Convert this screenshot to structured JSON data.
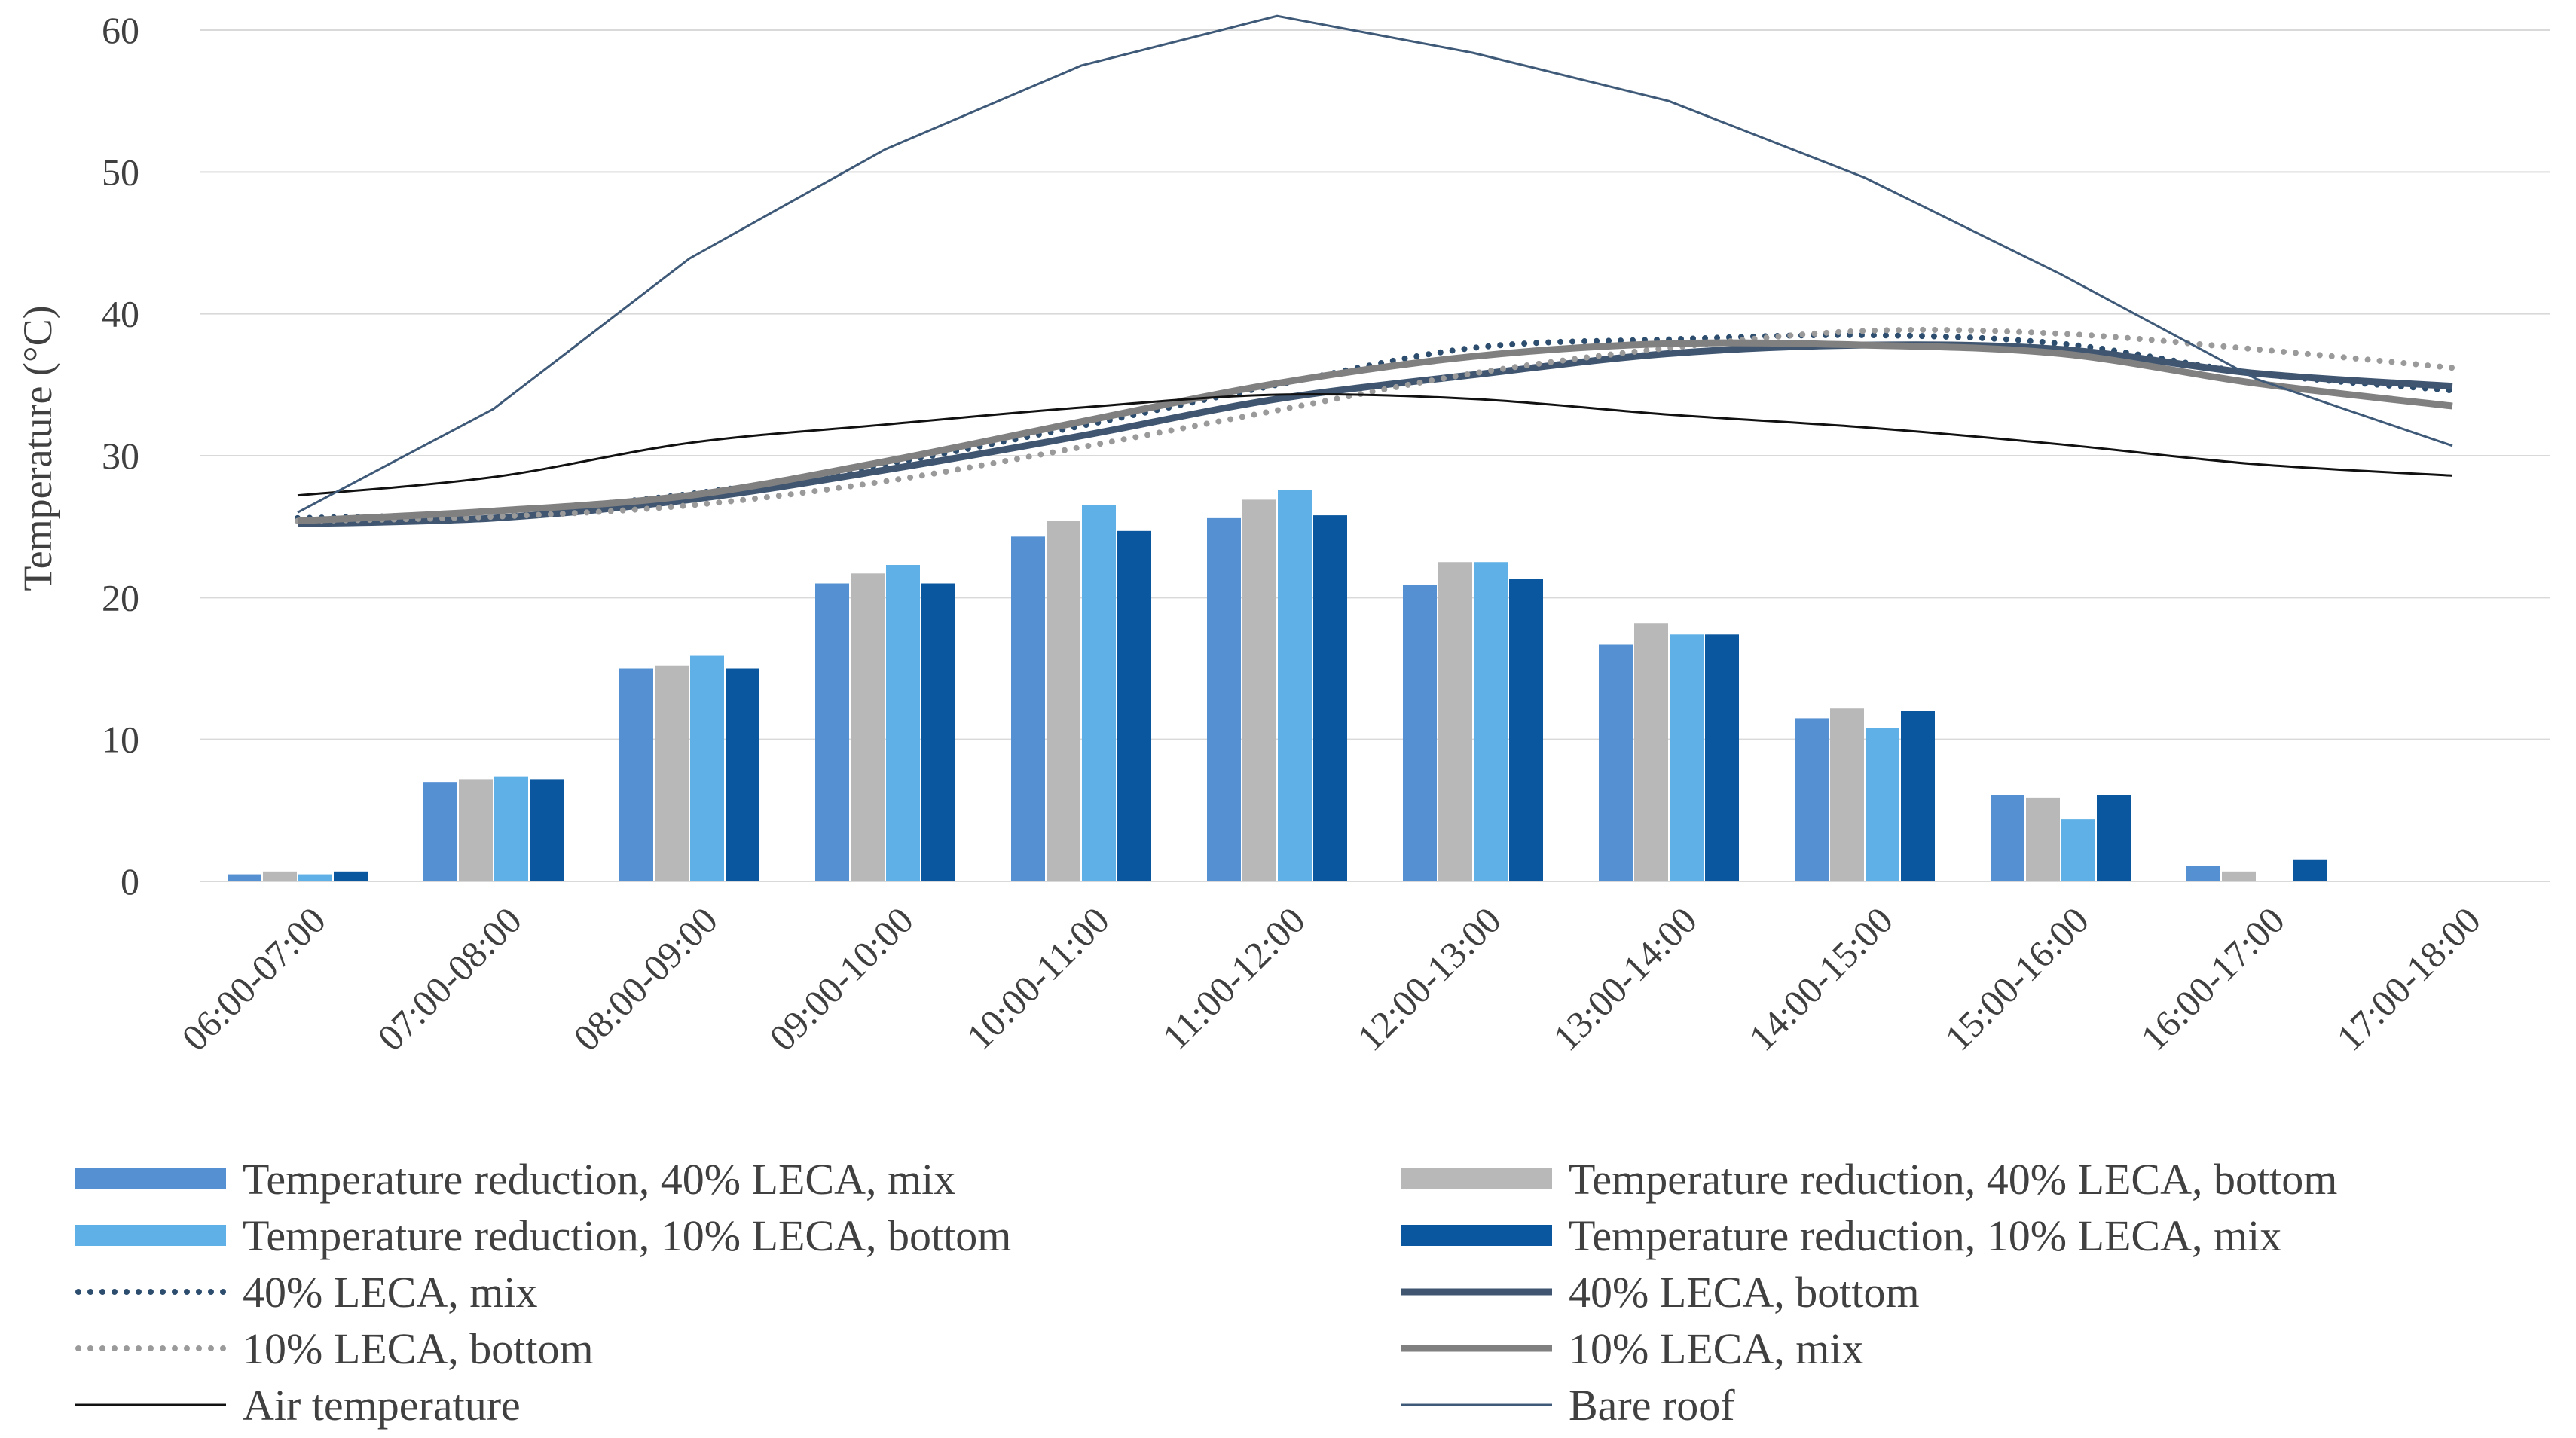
{
  "chart_data": {
    "type": "bar+line",
    "ylabel": "Temperature (°C)",
    "xlabel": "",
    "ylim": [
      0,
      60
    ],
    "yticks": [
      0,
      10,
      20,
      30,
      40,
      50,
      60
    ],
    "grid": true,
    "legend_position": "bottom",
    "categories": [
      "06:00-07:00",
      "07:00-08:00",
      "08:00-09:00",
      "09:00-10:00",
      "10:00-11:00",
      "11:00-12:00",
      "12:00-13:00",
      "13:00-14:00",
      "14:00-15:00",
      "15:00-16:00",
      "16:00-17:00",
      "17:00-18:00"
    ],
    "bar_series": [
      {
        "name": "Temperature reduction, 40% LECA, mix",
        "color": "#5590d2",
        "values": [
          0.5,
          7.0,
          15.0,
          21.0,
          24.3,
          25.6,
          20.9,
          16.7,
          11.5,
          6.1,
          1.1,
          0
        ]
      },
      {
        "name": "Temperature reduction, 40% LECA, bottom",
        "color": "#b8b8b8",
        "values": [
          0.7,
          7.2,
          15.2,
          21.7,
          25.4,
          26.9,
          22.5,
          18.2,
          12.2,
          5.9,
          0.7,
          0
        ]
      },
      {
        "name": "Temperature reduction, 10% LECA, bottom",
        "color": "#5fb0e6",
        "values": [
          0.5,
          7.4,
          15.9,
          22.3,
          26.5,
          27.6,
          22.5,
          17.4,
          10.8,
          4.4,
          0,
          0
        ]
      },
      {
        "name": "Temperature reduction, 10% LECA, mix",
        "color": "#0a57a0",
        "values": [
          0.7,
          7.2,
          15.0,
          21.0,
          24.7,
          25.8,
          21.3,
          17.4,
          12.0,
          6.1,
          1.5,
          0
        ]
      }
    ],
    "line_series": [
      {
        "name": "40% LECA, mix",
        "color": "#2d4d6e",
        "style": "dotted",
        "width": 8,
        "values": [
          25.6,
          26.0,
          27.3,
          29.4,
          32.1,
          35.0,
          37.6,
          38.2,
          38.5,
          37.9,
          35.8,
          34.6
        ]
      },
      {
        "name": "40% LECA, bottom",
        "color": "#3f5570",
        "style": "solid",
        "width": 9,
        "values": [
          25.2,
          25.6,
          26.9,
          29.0,
          31.4,
          34.0,
          35.7,
          37.2,
          37.8,
          37.5,
          35.8,
          34.9
        ]
      },
      {
        "name": "10% LECA, bottom",
        "color": "#9a9a9a",
        "style": "dotted",
        "width": 8,
        "values": [
          25.4,
          25.7,
          26.5,
          28.2,
          30.6,
          33.2,
          35.8,
          37.6,
          38.8,
          38.6,
          37.5,
          36.2
        ]
      },
      {
        "name": "10% LECA, mix",
        "color": "#808080",
        "style": "solid",
        "width": 9,
        "values": [
          25.4,
          26.1,
          27.2,
          29.6,
          32.4,
          35.1,
          37.0,
          37.9,
          37.8,
          37.2,
          35.1,
          33.5
        ]
      },
      {
        "name": "Air temperature",
        "color": "#111111",
        "style": "solid",
        "width": 3,
        "values": [
          27.2,
          28.5,
          30.9,
          32.2,
          33.4,
          34.3,
          34.0,
          32.9,
          32.0,
          30.8,
          29.4,
          28.6
        ]
      },
      {
        "name": "Bare roof",
        "color": "#3f5a78",
        "style": "solid",
        "width": 3,
        "values": [
          26.0,
          33.3,
          43.9,
          51.6,
          57.5,
          61.0,
          58.4,
          55.0,
          49.6,
          42.8,
          35.4,
          30.7
        ]
      }
    ]
  },
  "legend": {
    "rows": [
      [
        {
          "label": "Temperature reduction, 40% LECA, mix",
          "kind": "bar",
          "color": "#5590d2"
        },
        {
          "label": "Temperature reduction, 40% LECA, bottom",
          "kind": "bar",
          "color": "#b8b8b8"
        }
      ],
      [
        {
          "label": "Temperature reduction, 10% LECA, bottom",
          "kind": "bar",
          "color": "#5fb0e6"
        },
        {
          "label": "Temperature reduction, 10% LECA, mix",
          "kind": "bar",
          "color": "#0a57a0"
        }
      ],
      [
        {
          "label": "40% LECA, mix",
          "kind": "dotted",
          "color": "#2d4d6e"
        },
        {
          "label": "40% LECA, bottom",
          "kind": "solid-thick",
          "color": "#3f5570"
        }
      ],
      [
        {
          "label": "10% LECA, bottom",
          "kind": "dotted",
          "color": "#9a9a9a"
        },
        {
          "label": "10% LECA, mix",
          "kind": "solid-thick",
          "color": "#808080"
        }
      ],
      [
        {
          "label": "Air temperature",
          "kind": "solid-thin",
          "color": "#111111"
        },
        {
          "label": "Bare roof",
          "kind": "solid-thin",
          "color": "#3f5a78"
        }
      ]
    ]
  }
}
